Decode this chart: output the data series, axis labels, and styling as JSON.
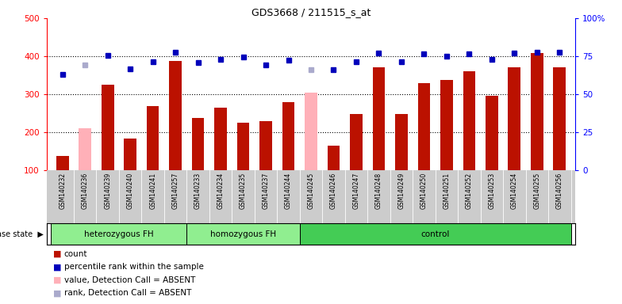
{
  "title": "GDS3668 / 211515_s_at",
  "samples": [
    "GSM140232",
    "GSM140236",
    "GSM140239",
    "GSM140240",
    "GSM140241",
    "GSM140257",
    "GSM140233",
    "GSM140234",
    "GSM140235",
    "GSM140237",
    "GSM140244",
    "GSM140245",
    "GSM140246",
    "GSM140247",
    "GSM140248",
    "GSM140249",
    "GSM140250",
    "GSM140251",
    "GSM140252",
    "GSM140253",
    "GSM140254",
    "GSM140255",
    "GSM140256"
  ],
  "counts": [
    138,
    210,
    326,
    183,
    268,
    388,
    238,
    265,
    226,
    230,
    280,
    305,
    165,
    248,
    370,
    247,
    330,
    337,
    360,
    295,
    370,
    408,
    370
  ],
  "ranks": [
    63,
    69.5,
    75.5,
    66.5,
    71.5,
    77.5,
    71,
    73,
    74.5,
    69.5,
    72.5,
    66,
    66,
    71.5,
    77,
    71.5,
    76.5,
    75,
    76.5,
    73,
    77,
    77.5,
    77.5
  ],
  "absent_indices": [
    1,
    11
  ],
  "group_defs": [
    {
      "start": 0,
      "end": 5,
      "label": "heterozygous FH",
      "color": "#90EE90"
    },
    {
      "start": 6,
      "end": 10,
      "label": "homozygous FH",
      "color": "#90EE90"
    },
    {
      "start": 11,
      "end": 22,
      "label": "control",
      "color": "#55DD55"
    }
  ],
  "ylim_left": [
    100,
    500
  ],
  "ylim_right": [
    0,
    100
  ],
  "yticks_left": [
    100,
    200,
    300,
    400,
    500
  ],
  "yticks_right": [
    0,
    25,
    50,
    75,
    100
  ],
  "ytick_right_labels": [
    "0",
    "25",
    "50",
    "75",
    "100%"
  ],
  "bar_color": "#BB1100",
  "absent_bar_color": "#FFB0B8",
  "dot_color": "#0000BB",
  "absent_dot_color": "#AAAACC",
  "grid_lines": [
    200,
    300,
    400
  ],
  "legend_items": [
    {
      "label": "count",
      "color": "#BB1100"
    },
    {
      "label": "percentile rank within the sample",
      "color": "#0000BB"
    },
    {
      "label": "value, Detection Call = ABSENT",
      "color": "#FFB0B8"
    },
    {
      "label": "rank, Detection Call = ABSENT",
      "color": "#AAAACC"
    }
  ]
}
